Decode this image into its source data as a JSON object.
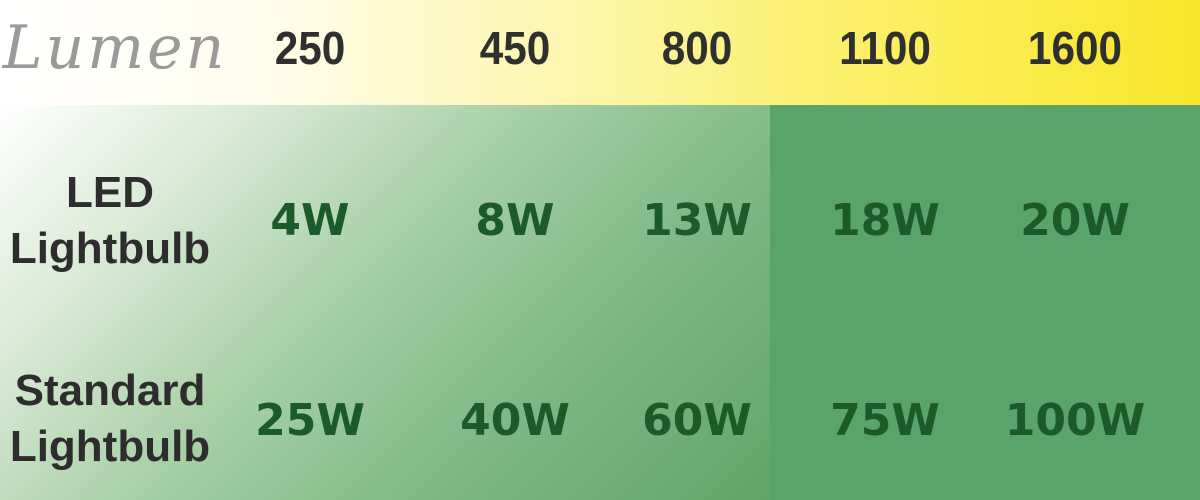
{
  "header": {
    "lumen_label": "Lumen",
    "lumens": [
      "250",
      "450",
      "800",
      "1100",
      "1600"
    ]
  },
  "rows": [
    {
      "label_line1": "LED",
      "label_line2": "Lightbulb",
      "watts": [
        "4W",
        "8W",
        "13W",
        "18W",
        "20W"
      ]
    },
    {
      "label_line1": "Standard",
      "label_line2": "Lightbulb",
      "watts": [
        "25W",
        "40W",
        "60W",
        "75W",
        "100W"
      ]
    }
  ],
  "colors": {
    "header_gradient_start": "#ffffff",
    "header_gradient_end": "#f8e72a",
    "green_light": "#d9ead6",
    "green_dark": "#5aa36b",
    "watt_text": "#1d5a2a",
    "label_text": "#2d2d2d",
    "lumen_label_text": "#9a9a9a"
  }
}
